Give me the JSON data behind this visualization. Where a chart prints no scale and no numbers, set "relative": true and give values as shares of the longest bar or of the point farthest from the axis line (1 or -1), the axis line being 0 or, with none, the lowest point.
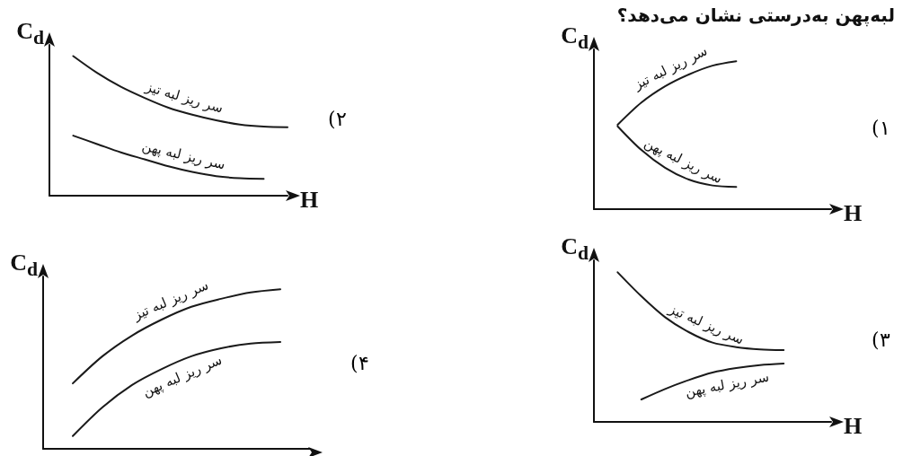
{
  "chart_data": [
    {
      "type": "line",
      "title": "لبه‌پهن به‌درستی نشان می‌دهد؟",
      "xlabel": "H",
      "ylabel": "C$_{d}$",
      "relative": true,
      "grid": false,
      "legend": false,
      "annotations": [
        "۱)"
      ],
      "categories": [
        null,
        null,
        null,
        null,
        null,
        null,
        null,
        null,
        null,
        null,
        null
      ],
      "series": [
        {
          "name": "سر ریز لبه تیز",
          "color": "#1a1a1a",
          "values": [
            null,
            0.57,
            0.72,
            0.83,
            0.91,
            0.97,
            1.0,
            null,
            null,
            null,
            null
          ]
        },
        {
          "name": "سر ریز لبه پهن",
          "color": "#1a1a1a",
          "values": [
            null,
            0.56,
            0.4,
            0.28,
            0.2,
            0.16,
            0.15,
            null,
            null,
            null,
            null
          ]
        }
      ]
    },
    {
      "type": "line",
      "xlabel": "H",
      "ylabel": "C$_{d}$",
      "relative": true,
      "grid": false,
      "legend": false,
      "annotations": [
        "۲)"
      ],
      "categories": [
        null,
        null,
        null,
        null,
        null,
        null,
        null,
        null,
        null,
        null,
        null
      ],
      "series": [
        {
          "name": "سر ریز لبه تیز",
          "color": "#1a1a1a",
          "values": [
            null,
            1.0,
            0.88,
            0.78,
            0.7,
            0.63,
            0.58,
            0.54,
            0.51,
            0.495,
            0.49
          ]
        },
        {
          "name": "سر ریز لبه پهن",
          "color": "#1a1a1a",
          "values": [
            null,
            0.43,
            0.37,
            0.31,
            0.26,
            0.21,
            0.17,
            0.14,
            0.125,
            0.12,
            null
          ]
        }
      ]
    },
    {
      "type": "line",
      "xlabel": "H",
      "ylabel": "C$_{d}$",
      "relative": true,
      "grid": false,
      "legend": false,
      "annotations": [
        "۳)"
      ],
      "categories": [
        null,
        null,
        null,
        null,
        null,
        null,
        null,
        null,
        null,
        null,
        null
      ],
      "series": [
        {
          "name": "سر ریز لبه تیز",
          "color": "#1a1a1a",
          "values": [
            null,
            1.0,
            0.84,
            0.7,
            0.6,
            0.53,
            0.5,
            0.485,
            0.48,
            null,
            null
          ]
        },
        {
          "name": "سر ریز لبه پهن",
          "color": "#1a1a1a",
          "values": [
            null,
            null,
            0.15,
            0.22,
            0.28,
            0.33,
            0.36,
            0.38,
            0.39,
            null,
            null
          ]
        }
      ]
    },
    {
      "type": "line",
      "ylabel": "C$_{d}$",
      "relative": true,
      "grid": false,
      "legend": false,
      "annotations": [
        "۴)"
      ],
      "categories": [
        null,
        null,
        null,
        null,
        null,
        null,
        null,
        null,
        null,
        null
      ],
      "series": [
        {
          "name": "سر ریز لبه تیز",
          "color": "#1a1a1a",
          "values": [
            null,
            0.41,
            0.58,
            0.71,
            0.81,
            0.89,
            0.94,
            0.98,
            1.0,
            null
          ]
        },
        {
          "name": "سر ریز لبه پهن",
          "color": "#1a1a1a",
          "values": [
            null,
            0.08,
            0.26,
            0.4,
            0.5,
            0.58,
            0.63,
            0.66,
            0.67,
            null
          ]
        }
      ]
    }
  ]
}
